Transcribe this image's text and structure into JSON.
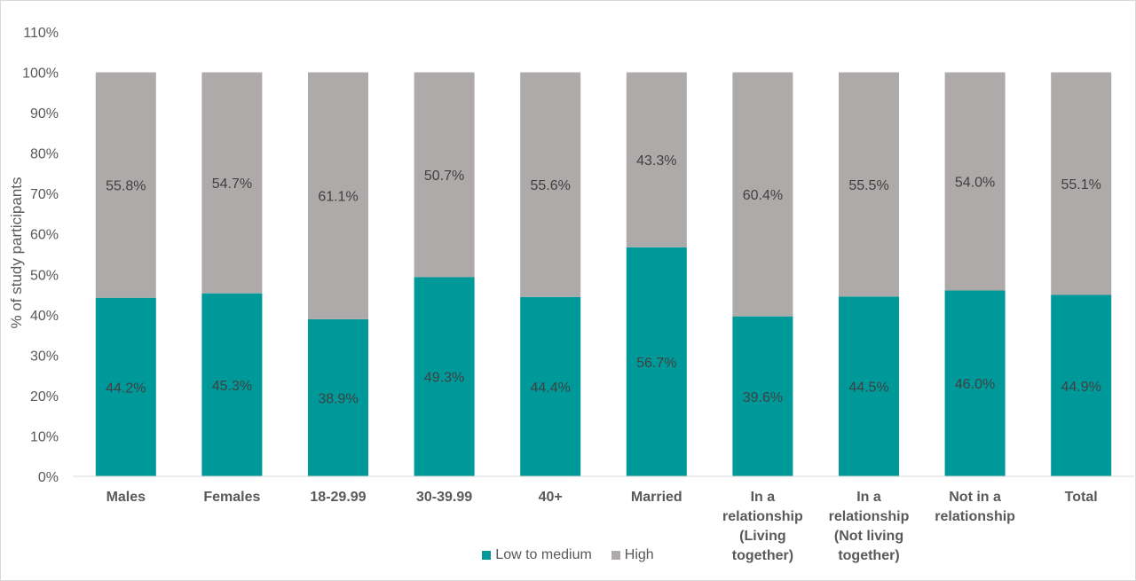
{
  "chart_data": {
    "type": "bar",
    "stacked": true,
    "categories": [
      "Males",
      "Females",
      "18-29.99",
      "30-39.99",
      "40+",
      "Married",
      "In a relationship (Living together)",
      "In a relationship (Not living together)",
      "Not in a relationship",
      "Total"
    ],
    "category_lines": [
      [
        "Males"
      ],
      [
        "Females"
      ],
      [
        "18-29.99"
      ],
      [
        "30-39.99"
      ],
      [
        "40+"
      ],
      [
        "Married"
      ],
      [
        "In a",
        "relationship",
        "(Living",
        "together)"
      ],
      [
        "In a",
        "relationship",
        "(Not living",
        "together)"
      ],
      [
        "Not in a",
        "relationship"
      ],
      [
        "Total"
      ]
    ],
    "series": [
      {
        "name": "Low to medium",
        "color": "#009999",
        "values": [
          44.2,
          45.3,
          38.9,
          49.3,
          44.4,
          56.7,
          39.6,
          44.5,
          46.0,
          44.9
        ],
        "labels": [
          "44.2%",
          "45.3%",
          "38.9%",
          "49.3%",
          "44.4%",
          "56.7%",
          "39.6%",
          "44.5%",
          "46.0%",
          "44.9%"
        ]
      },
      {
        "name": "High",
        "color": "#aeaaaa",
        "values": [
          55.8,
          54.7,
          61.1,
          50.7,
          55.6,
          43.3,
          60.4,
          55.5,
          54.0,
          55.1
        ],
        "labels": [
          "55.8%",
          "54.7%",
          "61.1%",
          "50.7%",
          "55.6%",
          "43.3%",
          "60.4%",
          "55.5%",
          "54.0%",
          "55.1%"
        ]
      }
    ],
    "ylabel": "% of study participants",
    "ylim": [
      0,
      110
    ],
    "yticks": [
      "0%",
      "10%",
      "20%",
      "30%",
      "40%",
      "50%",
      "60%",
      "70%",
      "80%",
      "90%",
      "100%",
      "110%"
    ],
    "grid": false,
    "legend_position": "bottom"
  }
}
